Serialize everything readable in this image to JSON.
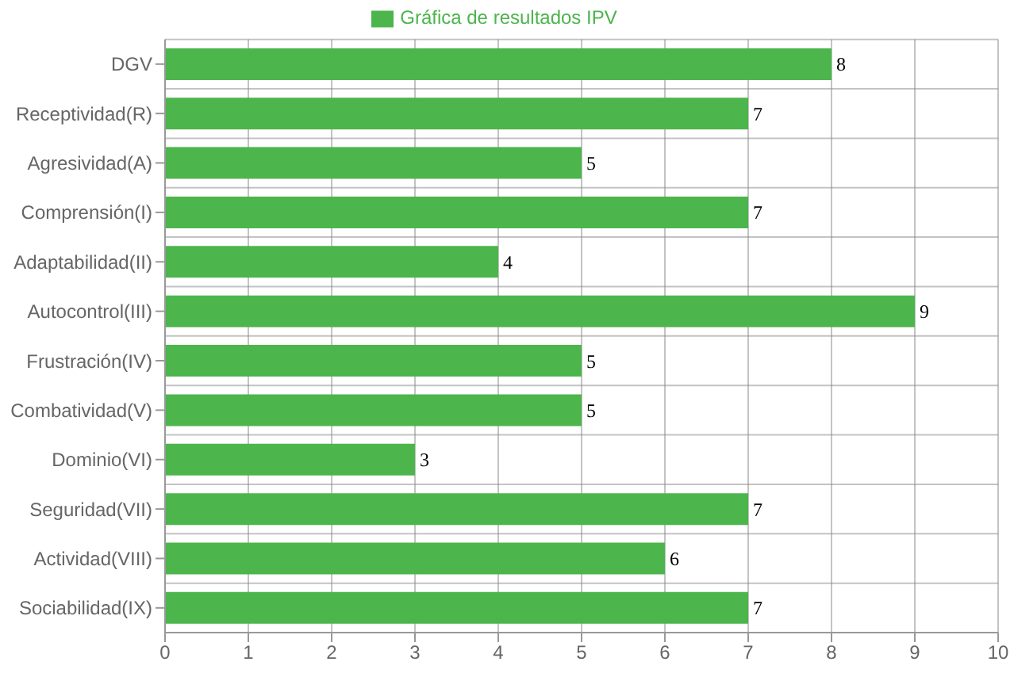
{
  "chart_data": {
    "type": "bar",
    "orientation": "horizontal",
    "categories": [
      "DGV",
      "Receptividad(R)",
      "Agresividad(A)",
      "Comprensión(I)",
      "Adaptabilidad(II)",
      "Autocontrol(III)",
      "Frustración(IV)",
      "Combatividad(V)",
      "Dominio(VI)",
      "Seguridad(VII)",
      "Actividad(VIII)",
      "Sociabilidad(IX)"
    ],
    "series": [
      {
        "name": "Gráfica de resultados IPV",
        "color": "#4cb54c",
        "values": [
          8,
          7,
          5,
          7,
          4,
          9,
          5,
          5,
          3,
          7,
          6,
          7
        ]
      }
    ],
    "xlim": [
      0,
      10
    ],
    "xticks": [
      0,
      1,
      2,
      3,
      4,
      5,
      6,
      7,
      8,
      9,
      10
    ],
    "grid": true,
    "legend": "top",
    "data_labels": true
  }
}
